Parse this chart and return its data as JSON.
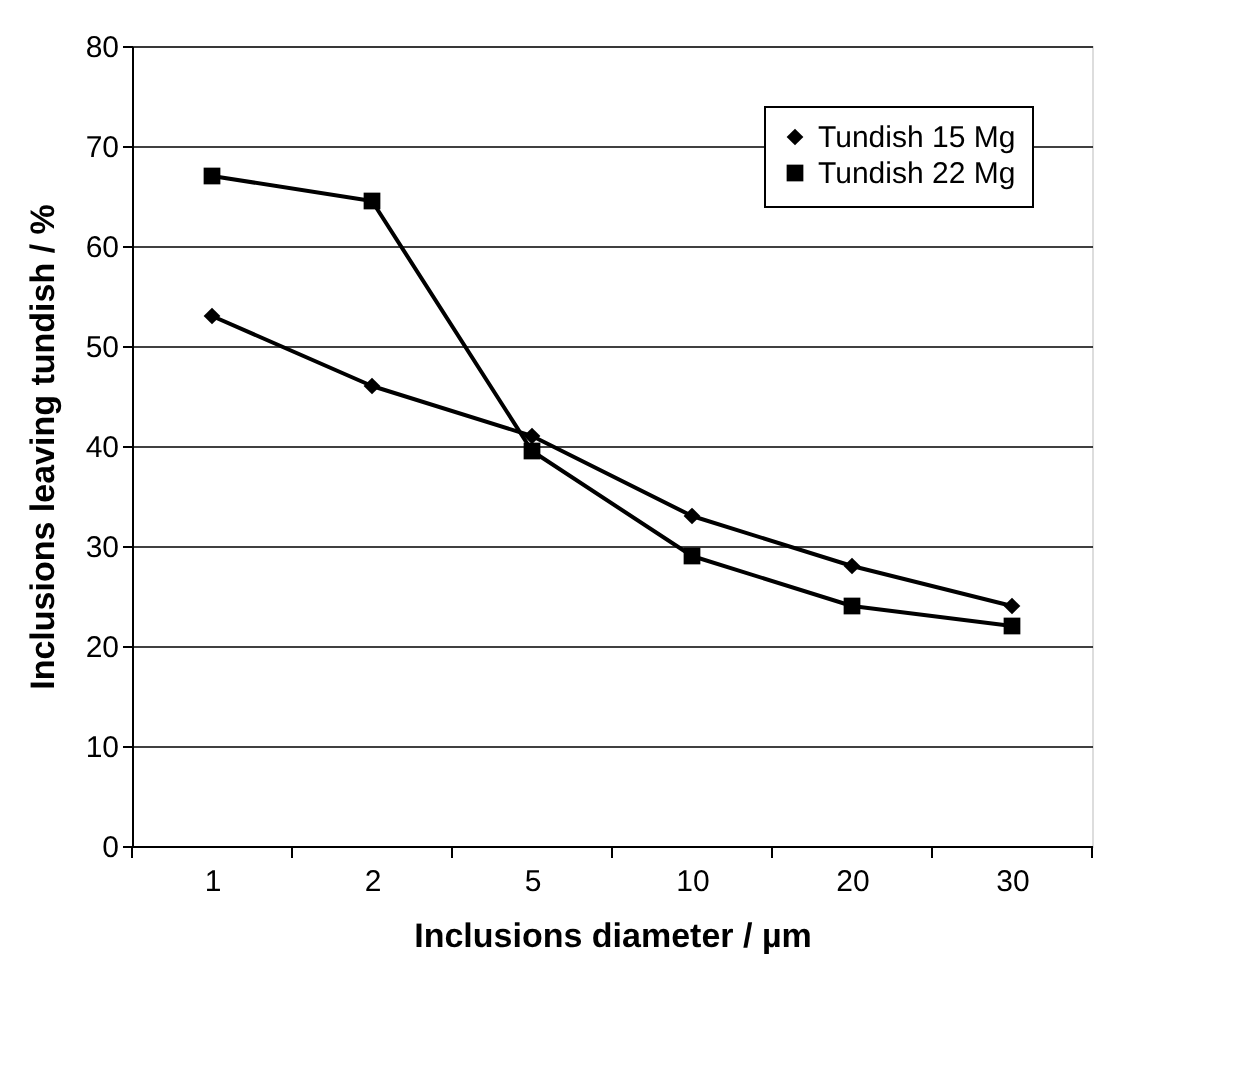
{
  "chart_data": {
    "type": "line",
    "xlabel": "Inclusions diameter  / µm",
    "ylabel": "Inclusions leaving tundish  / %",
    "categories": [
      "1",
      "2",
      "5",
      "10",
      "20",
      "30"
    ],
    "series": [
      {
        "name": "Tundish 15 Mg",
        "color": "#000000",
        "marker": "diamond",
        "values": [
          53,
          46,
          41,
          33,
          28,
          24
        ]
      },
      {
        "name": "Tundish 22 Mg",
        "color": "#000000",
        "marker": "square",
        "values": [
          67,
          64.5,
          39.5,
          29,
          24,
          22
        ]
      }
    ],
    "ylim": [
      0,
      80
    ],
    "yticks": [
      0,
      10,
      20,
      30,
      40,
      50,
      60,
      70,
      80
    ],
    "grid": "y",
    "legend": "right",
    "line_style": "solid"
  }
}
